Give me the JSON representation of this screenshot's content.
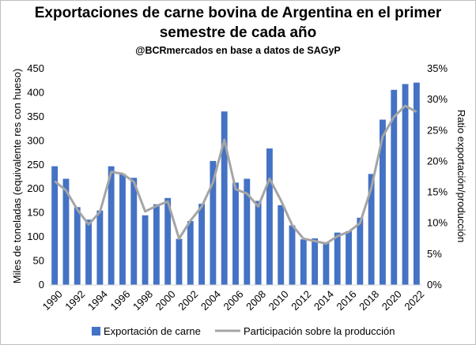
{
  "chart_data": {
    "type": "bar",
    "title_line1": "Exportaciones de carne bovina de Argentina en el primer",
    "title_line2": "semestre de cada año",
    "subtitle": "@BCRmercados en base a datos de SAGyP",
    "ylabel_left": "Miles de toneladas (equivalente  res con hueso)",
    "ylabel_right": "Ratio exportación/producción",
    "ylim_left": [
      0,
      450
    ],
    "ylim_right": [
      0,
      35
    ],
    "left_ticks": [
      "0",
      "50",
      "100",
      "150",
      "200",
      "250",
      "300",
      "350",
      "400",
      "450"
    ],
    "right_ticks": [
      "0%",
      "5%",
      "10%",
      "15%",
      "20%",
      "25%",
      "30%",
      "35%"
    ],
    "x_tick_labels": [
      "1990",
      "1992",
      "1994",
      "1996",
      "1998",
      "2000",
      "2002",
      "2004",
      "2006",
      "2008",
      "2010",
      "2012",
      "2014",
      "2016",
      "2018",
      "2020",
      "2022"
    ],
    "categories": [
      "1990",
      "1991",
      "1992",
      "1993",
      "1994",
      "1995",
      "1996",
      "1997",
      "1998",
      "1999",
      "2000",
      "2001",
      "2002",
      "2003",
      "2004",
      "2005",
      "2006",
      "2007",
      "2008",
      "2009",
      "2010",
      "2011",
      "2012",
      "2013",
      "2014",
      "2015",
      "2016",
      "2017",
      "2018",
      "2019",
      "2020",
      "2021",
      "2022"
    ],
    "series": [
      {
        "name": "Exportación de carne",
        "axis": "left",
        "color": "#4472c4",
        "values": [
          247,
          221,
          162,
          136,
          155,
          247,
          231,
          223,
          145,
          168,
          181,
          96,
          133,
          169,
          258,
          361,
          213,
          221,
          175,
          284,
          166,
          124,
          95,
          97,
          89,
          109,
          112,
          140,
          231,
          344,
          406,
          418,
          421
        ]
      },
      {
        "name": "Participación sobre la producción",
        "axis": "right",
        "color": "#a5a5a5",
        "values": [
          16.8,
          15.3,
          12.2,
          9.8,
          11.8,
          18.3,
          18.0,
          16.7,
          11.9,
          12.8,
          13.5,
          7.5,
          10.4,
          12.7,
          16.6,
          23.5,
          15.5,
          14.8,
          12.7,
          17.2,
          13.7,
          9.7,
          7.5,
          7.1,
          6.7,
          7.9,
          8.6,
          10.0,
          15.7,
          24.0,
          27.2,
          29.0,
          28.0
        ]
      }
    ],
    "grid": false,
    "legend_position": "bottom"
  }
}
